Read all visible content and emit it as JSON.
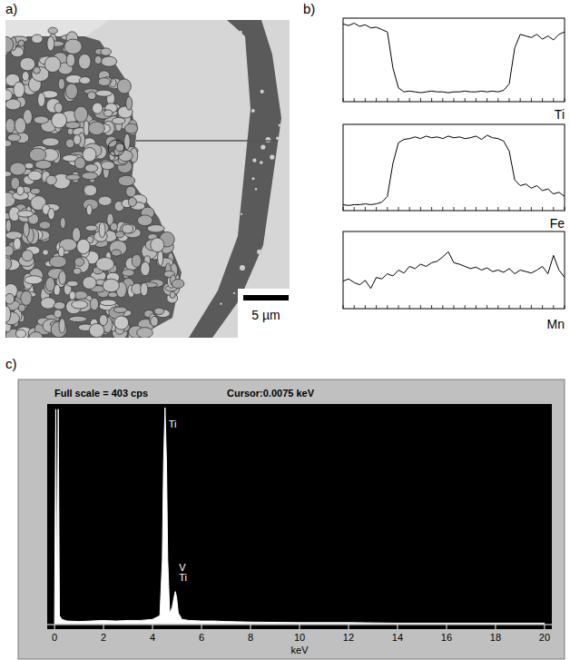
{
  "figure": {
    "panel_labels": [
      "a)",
      "b)",
      "c)"
    ],
    "scale_bar": "5 µm"
  },
  "chart_data": [
    {
      "type": "line",
      "title": "Ti",
      "color": "#000000",
      "tick_labels": false,
      "xlim": [
        0,
        100
      ],
      "ylim": [
        0,
        100
      ],
      "xticks": [
        0,
        5,
        10,
        15,
        20,
        25,
        30,
        35,
        40,
        45,
        50,
        55,
        60,
        65,
        70,
        75,
        80,
        85,
        90,
        95,
        100
      ],
      "x": [
        0,
        2.5,
        5,
        7.5,
        10,
        12.5,
        15,
        17.5,
        20,
        22.5,
        25,
        27.5,
        30,
        32.5,
        35,
        37.5,
        40,
        42.5,
        45,
        47.5,
        50,
        52.5,
        55,
        57.5,
        60,
        62.5,
        65,
        67.5,
        70,
        72.5,
        75,
        77.5,
        80,
        82.5,
        85,
        87.5,
        90,
        92.5,
        95,
        97.5,
        100
      ],
      "values": [
        95,
        93,
        96,
        92,
        94,
        90,
        91,
        88,
        85,
        40,
        15,
        10,
        11,
        10,
        9,
        10,
        11,
        10,
        10,
        9,
        10,
        10,
        11,
        10,
        10,
        11,
        10,
        11,
        10,
        12,
        20,
        65,
        82,
        80,
        78,
        82,
        76,
        80,
        75,
        82,
        85
      ]
    },
    {
      "type": "line",
      "title": "Fe",
      "color": "#000000",
      "tick_labels": false,
      "xlim": [
        0,
        100
      ],
      "ylim": [
        0,
        100
      ],
      "xticks": [
        0,
        5,
        10,
        15,
        20,
        25,
        30,
        35,
        40,
        45,
        50,
        55,
        60,
        65,
        70,
        75,
        80,
        85,
        90,
        95,
        100
      ],
      "x": [
        0,
        2.5,
        5,
        7.5,
        10,
        12.5,
        15,
        17.5,
        20,
        22.5,
        25,
        27.5,
        30,
        32.5,
        35,
        37.5,
        40,
        42.5,
        45,
        47.5,
        50,
        52.5,
        55,
        57.5,
        60,
        62.5,
        65,
        67.5,
        70,
        72.5,
        75,
        77.5,
        80,
        82.5,
        85,
        87.5,
        90,
        92.5,
        95,
        97.5,
        100
      ],
      "values": [
        5,
        4,
        5,
        5,
        6,
        5,
        6,
        8,
        15,
        55,
        80,
        84,
        85,
        87,
        85,
        88,
        86,
        87,
        85,
        88,
        86,
        87,
        85,
        86,
        88,
        84,
        89,
        86,
        85,
        82,
        70,
        35,
        28,
        30,
        25,
        28,
        22,
        24,
        18,
        20,
        15
      ]
    },
    {
      "type": "line",
      "title": "Mn",
      "color": "#000000",
      "tick_labels": false,
      "xlim": [
        0,
        100
      ],
      "ylim": [
        0,
        100
      ],
      "xticks": [
        0,
        5,
        10,
        15,
        20,
        25,
        30,
        35,
        40,
        45,
        50,
        55,
        60,
        65,
        70,
        75,
        80,
        85,
        90,
        95,
        100
      ],
      "x": [
        0,
        2.5,
        5,
        7.5,
        10,
        12.5,
        15,
        17.5,
        20,
        22.5,
        25,
        27.5,
        30,
        32.5,
        35,
        37.5,
        40,
        42.5,
        45,
        47.5,
        50,
        52.5,
        55,
        57.5,
        60,
        62.5,
        65,
        67.5,
        70,
        72.5,
        75,
        77.5,
        80,
        82.5,
        85,
        87.5,
        90,
        92.5,
        95,
        97.5,
        100
      ],
      "values": [
        35,
        38,
        33,
        30,
        36,
        25,
        40,
        38,
        45,
        42,
        50,
        46,
        55,
        52,
        58,
        55,
        60,
        62,
        68,
        75,
        60,
        58,
        55,
        52,
        54,
        50,
        53,
        48,
        50,
        47,
        52,
        45,
        50,
        48,
        46,
        50,
        55,
        45,
        70,
        50,
        40
      ]
    },
    {
      "type": "area",
      "title": "Full scale = 403 cps",
      "subtitle": "Cursor:0.0075 keV",
      "x_label": "keV",
      "color": "#ffffff",
      "tick_labels": "x",
      "xlim": [
        -0.3,
        20.3
      ],
      "ylim": [
        0,
        403
      ],
      "xticks": [
        0,
        2,
        4,
        6,
        8,
        10,
        12,
        14,
        16,
        18,
        20
      ],
      "x": [
        0,
        0.05,
        0.1,
        0.15,
        0.2,
        0.3,
        0.5,
        1,
        1.5,
        2,
        2.5,
        3,
        3.5,
        4,
        4.3,
        4.4,
        4.45,
        4.51,
        4.57,
        4.62,
        4.7,
        4.8,
        4.88,
        4.93,
        4.98,
        5.05,
        5.2,
        5.5,
        6,
        6.5,
        7,
        8,
        10,
        12,
        14,
        16,
        18,
        20
      ],
      "values": [
        0,
        400,
        20,
        400,
        15,
        8,
        5,
        4,
        5,
        6,
        5,
        6,
        6,
        8,
        15,
        120,
        300,
        403,
        300,
        120,
        20,
        30,
        50,
        60,
        50,
        20,
        8,
        6,
        5,
        5,
        4,
        3,
        2,
        2,
        1,
        1,
        1,
        1
      ],
      "annotations": [
        {
          "text": "Ti",
          "x": 4.51,
          "y": 365
        },
        {
          "text": "V",
          "x": 4.93,
          "y": 99
        },
        {
          "text": "Ti",
          "x": 4.93,
          "y": 79
        }
      ]
    }
  ]
}
